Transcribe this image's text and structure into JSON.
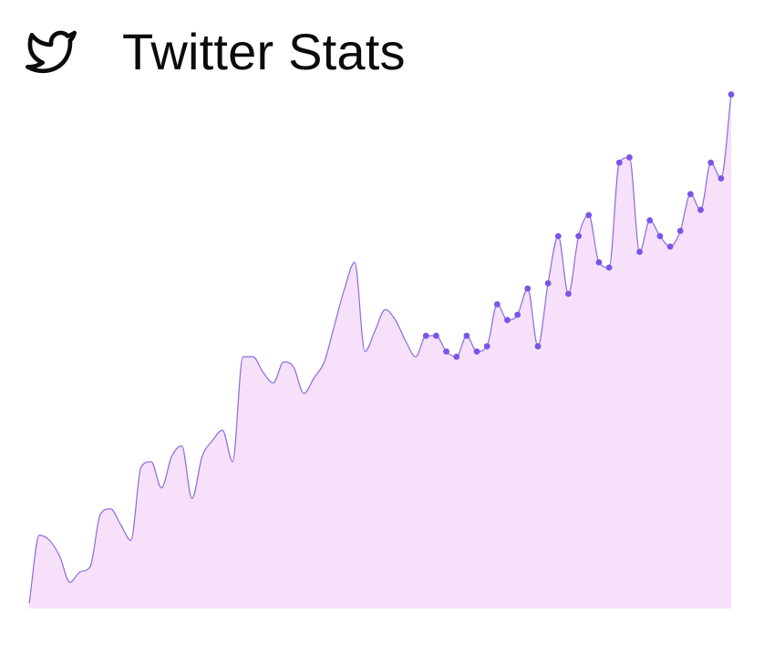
{
  "app": {
    "title": "Twitter Stats",
    "logo_icon": "twitter-bird-icon"
  },
  "colors": {
    "line": "#8c6ce0",
    "point": "#7a55e6",
    "area_fill": "#f6e0fa",
    "title_text": "#0b0b0b"
  },
  "chart_data": {
    "type": "area",
    "title": "",
    "xlabel": "",
    "ylabel": "",
    "x": [
      0,
      1,
      2,
      3,
      4,
      5,
      6,
      7,
      8,
      9,
      10,
      11,
      12,
      13,
      14,
      15,
      16,
      17,
      18,
      19,
      20,
      21,
      22,
      23,
      24,
      25,
      26,
      27,
      28,
      29,
      30,
      31,
      32,
      33,
      34,
      35,
      36,
      37,
      38,
      39,
      40,
      41,
      42,
      43,
      44,
      45,
      46,
      47,
      48,
      49,
      50,
      51,
      52,
      53,
      54,
      55,
      56,
      57,
      58,
      59,
      60,
      61,
      62,
      63,
      64,
      65,
      66,
      67,
      68,
      69
    ],
    "values": [
      1,
      14,
      13,
      10,
      5,
      7,
      8,
      18,
      19,
      16,
      13,
      27,
      28,
      23,
      29,
      31,
      21,
      29,
      32,
      34,
      28,
      48,
      48,
      45,
      43,
      47,
      46,
      41,
      44,
      47,
      54,
      61,
      66,
      49,
      53,
      57,
      55,
      51,
      48,
      52,
      52,
      49,
      48,
      52,
      49,
      50,
      58,
      55,
      56,
      61,
      50,
      62,
      71,
      60,
      71,
      75,
      66,
      65,
      85,
      86,
      68,
      74,
      71,
      69,
      72,
      79,
      76,
      85,
      82,
      98
    ],
    "markers_from_index": 39,
    "ylim": [
      0,
      100
    ],
    "grid": false,
    "legend": "none"
  }
}
